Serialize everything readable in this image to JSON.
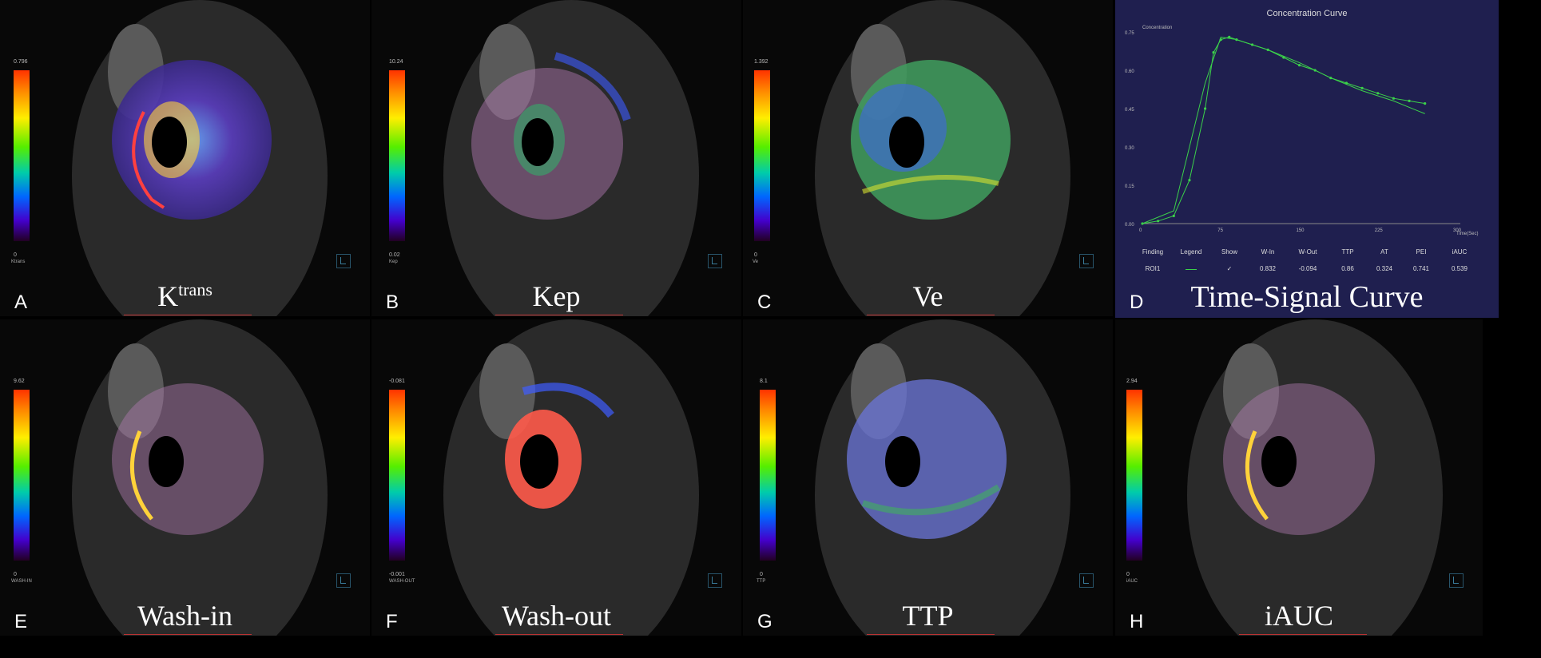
{
  "panels": [
    {
      "letter": "A",
      "title_main": "K",
      "title_sup": "trans",
      "cmax": "0.796",
      "cmin": "0",
      "cname": "Ktrans"
    },
    {
      "letter": "B",
      "title_main": "Kep",
      "title_sup": "",
      "cmax": "10.24",
      "cmin": "0.02",
      "cname": "Kep"
    },
    {
      "letter": "C",
      "title_main": "Ve",
      "title_sup": "",
      "cmax": "1.392",
      "cmin": "0",
      "cname": "Ve"
    },
    {
      "letter": "D",
      "title_main": "Time-Signal Curve",
      "title_sup": ""
    },
    {
      "letter": "E",
      "title_main": "Wash-in",
      "title_sup": "",
      "cmax": "9.62",
      "cmin": "0",
      "cname": "WASH-IN"
    },
    {
      "letter": "F",
      "title_main": "Wash-out",
      "title_sup": "",
      "cmax": "-0.081",
      "cmin": "-0.001",
      "cname": "WASH-OUT"
    },
    {
      "letter": "G",
      "title_main": "TTP",
      "title_sup": "",
      "cmax": "8.1",
      "cmin": "0",
      "cname": "TTP"
    },
    {
      "letter": "H",
      "title_main": "iAUC",
      "title_sup": "",
      "cmax": "2.94",
      "cmin": "0",
      "cname": "iAUC"
    }
  ],
  "chart": {
    "title": "Concentration Curve",
    "ylabel": "Concentration",
    "xlabel": "Time(Sec)",
    "yticks": [
      "0.00",
      "0.15",
      "0.30",
      "0.45",
      "0.60",
      "0.75"
    ],
    "xticks": [
      "0",
      "75",
      "150",
      "225",
      "300"
    ]
  },
  "table": {
    "headers": [
      "Finding",
      "Legend",
      "Show",
      "W-In",
      "W-Out",
      "TTP",
      "AT",
      "PEI",
      "iAUC"
    ],
    "row": [
      "ROI1",
      "",
      "✓",
      "0.832",
      "-0.094",
      "0.86",
      "0.324",
      "0.741",
      "0.539"
    ]
  },
  "chart_data": {
    "type": "line",
    "title": "Concentration Curve",
    "xlabel": "Time(Sec)",
    "ylabel": "Concentration",
    "xlim": [
      0,
      300
    ],
    "ylim": [
      0,
      0.75
    ],
    "series": [
      {
        "x": [
          0,
          15,
          30,
          45,
          60,
          68,
          75,
          83,
          90,
          105,
          120,
          135,
          150,
          165,
          180,
          195,
          210,
          225,
          240,
          255,
          270
        ],
        "values": [
          0.0,
          0.01,
          0.03,
          0.17,
          0.45,
          0.67,
          0.72,
          0.73,
          0.72,
          0.7,
          0.68,
          0.65,
          0.62,
          0.6,
          0.57,
          0.55,
          0.53,
          0.51,
          0.49,
          0.48,
          0.47
        ]
      },
      {
        "x": [
          0,
          30,
          45,
          60,
          75,
          90,
          120,
          150,
          180,
          210,
          240,
          270
        ],
        "values": [
          0.0,
          0.05,
          0.3,
          0.55,
          0.73,
          0.72,
          0.68,
          0.63,
          0.57,
          0.52,
          0.48,
          0.43
        ]
      }
    ]
  }
}
